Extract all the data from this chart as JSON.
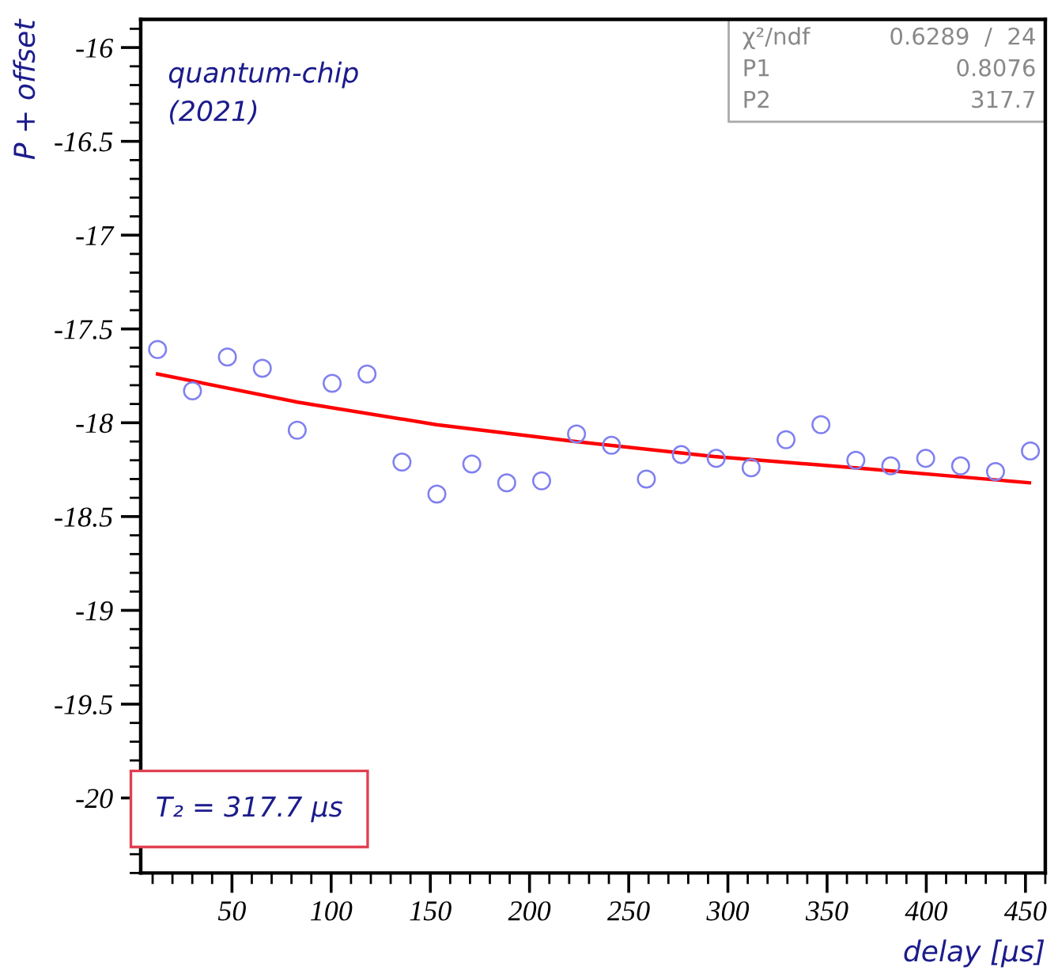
{
  "chart_data": {
    "type": "scatter",
    "xlabel": "delay [µs]",
    "ylabel": "P + offset",
    "xlim": [
      4,
      460
    ],
    "ylim": [
      -20.4,
      -15.85
    ],
    "xticks": [
      50,
      100,
      150,
      200,
      250,
      300,
      350,
      400,
      450
    ],
    "yticks": [
      -20,
      -19.5,
      -19,
      -18.5,
      -18,
      -17.5,
      -17,
      -16.5,
      -16
    ],
    "grid": false,
    "legend": false,
    "series": [
      {
        "marker": "circle",
        "color": "#8080f0",
        "x": [
          12.5,
          30.1,
          47.7,
          65.3,
          82.9,
          100.5,
          118.1,
          135.7,
          153.3,
          170.9,
          188.5,
          206.1,
          223.7,
          241.3,
          258.9,
          276.5,
          294.1,
          311.7,
          329.3,
          346.9,
          364.5,
          382.1,
          399.7,
          417.3,
          434.9,
          452.5
        ],
        "values": [
          -17.61,
          -17.83,
          -17.65,
          -17.71,
          -18.04,
          -17.79,
          -17.74,
          -18.21,
          -18.38,
          -18.22,
          -18.32,
          -18.31,
          -18.06,
          -18.12,
          -18.3,
          -18.17,
          -18.19,
          -18.24,
          -18.09,
          -18.01,
          -18.2,
          -18.23,
          -18.19,
          -18.23,
          -18.26,
          -18.15
        ]
      },
      {
        "type": "line",
        "color": "#ff0000",
        "x": [
          12.5,
          83,
          153,
          223,
          293,
          364,
          452
        ],
        "values": [
          -17.74,
          -17.89,
          -18.01,
          -18.1,
          -18.18,
          -18.24,
          -18.32
        ]
      }
    ],
    "annotations": [
      "quantum-chip",
      "(2021)",
      "χ²/ndf  0.6289  /  24",
      "P1  0.8076",
      "P2  317.7",
      "T₂ = 317.7 µs"
    ]
  }
}
